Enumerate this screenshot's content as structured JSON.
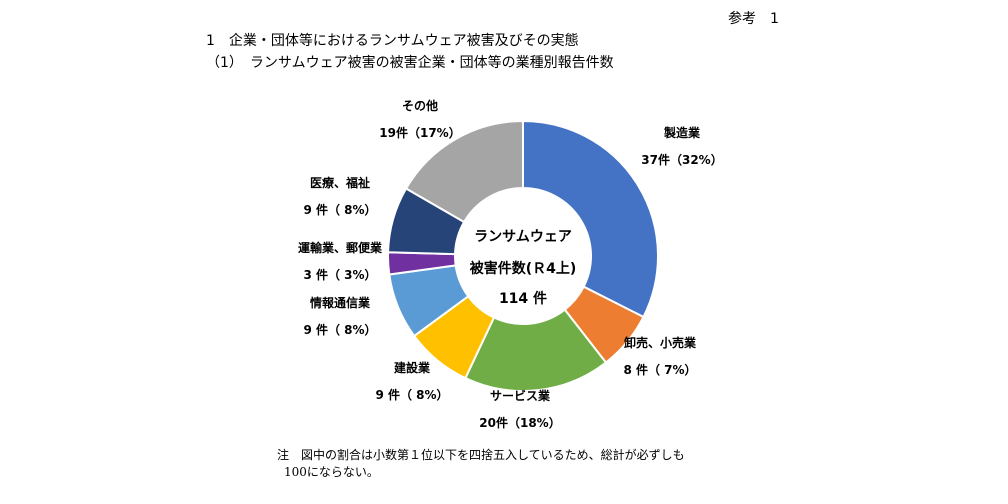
{
  "header": {
    "ref": "参考　1",
    "title": "1　企業・団体等におけるランサムウェア被害及びその実態",
    "subtitle": "（1）　ランサムウェア被害の被害企業・団体等の業種別報告件数"
  },
  "chart_data": {
    "type": "pie",
    "donut": true,
    "start": "top",
    "direction": "clockwise",
    "center_label": [
      "ランサムウェア",
      "被害件数(Ｒ4上)",
      "114 件"
    ],
    "slices": [
      {
        "name": "製造業",
        "value": 37,
        "label": "37件（32%）",
        "color": "#4472C4"
      },
      {
        "name": "卸売、小売業",
        "value": 8,
        "label": "8 件（ 7%）",
        "color": "#ED7D31"
      },
      {
        "name": "サービス業",
        "value": 20,
        "label": "20件（18%）",
        "color": "#70AD47"
      },
      {
        "name": "建設業",
        "value": 9,
        "label": "9 件（ 8%）",
        "color": "#FFC000"
      },
      {
        "name": "情報通信業",
        "value": 9,
        "label": "9 件（ 8%）",
        "color": "#5B9BD5"
      },
      {
        "name": "運輸業、郵便業",
        "value": 3,
        "label": "3 件（ 3%）",
        "color": "#7030A0"
      },
      {
        "name": "医療、福祉",
        "value": 9,
        "label": "9 件（ 8%）",
        "color": "#264478"
      },
      {
        "name": "その他",
        "value": 19,
        "label": "19件（17%）",
        "color": "#A5A5A5"
      }
    ]
  },
  "note": [
    "注　図中の割合は小数第１位以下を四捨五入しているため、総計が必ずしも",
    "100にならない。"
  ]
}
